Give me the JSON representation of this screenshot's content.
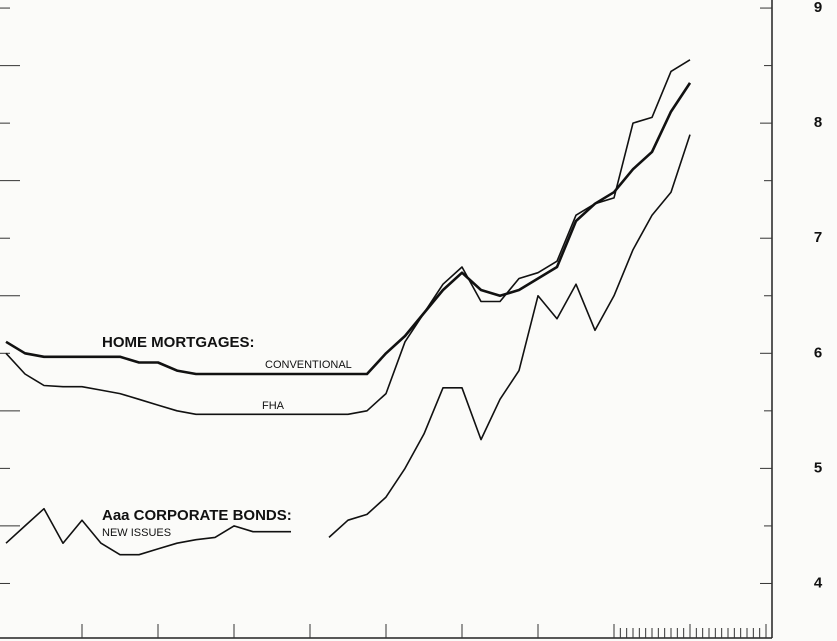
{
  "chart_data": {
    "type": "line",
    "ylim": [
      3.5,
      9.07
    ],
    "yticks": [
      4,
      5,
      6,
      7,
      8,
      9
    ],
    "minor_yticks": [
      4.5,
      5.5,
      6.5,
      7.5,
      8.5
    ],
    "xlim": [
      0,
      120
    ],
    "xticks": [
      12,
      24,
      36,
      48,
      60,
      72,
      84,
      96,
      97,
      98,
      99,
      100,
      101,
      102,
      103,
      104,
      105,
      106,
      107,
      108,
      109,
      110,
      111,
      112,
      113,
      114,
      115,
      116,
      117,
      118,
      119,
      120
    ],
    "x": [
      0,
      3,
      6,
      9,
      12,
      15,
      18,
      21,
      24,
      27,
      30,
      33,
      36,
      39,
      42,
      45,
      48,
      51,
      54,
      57,
      60,
      63,
      66,
      69,
      72,
      75,
      78,
      81,
      84,
      87,
      90,
      93,
      96,
      99,
      102,
      105,
      108
    ],
    "annotations": [
      "HOME MORTGAGES:",
      "CONVENTIONAL",
      "FHA",
      "Aaa CORPORATE BONDS:",
      "NEW ISSUES"
    ],
    "series": [
      {
        "color": "#111111",
        "values": [
          6.1,
          6.0,
          5.97,
          5.97,
          5.97,
          5.97,
          5.97,
          5.92,
          5.92,
          5.85,
          5.82,
          5.82,
          5.82,
          5.82,
          5.82,
          5.82,
          5.82,
          5.82,
          5.82,
          5.82,
          6.0,
          6.15,
          6.35,
          6.55,
          6.7,
          6.55,
          6.5,
          6.55,
          6.65,
          6.75,
          7.15,
          7.3,
          7.4,
          7.6,
          7.75,
          8.1,
          8.35
        ]
      },
      {
        "color": "#111111",
        "values": [
          6.0,
          5.82,
          5.72,
          5.71,
          5.71,
          5.68,
          5.65,
          5.6,
          5.55,
          5.5,
          5.47,
          5.47,
          5.47,
          5.47,
          5.47,
          5.47,
          5.47,
          5.47,
          5.47,
          5.5,
          5.65,
          6.1,
          6.35,
          6.6,
          6.75,
          6.45,
          6.45,
          6.65,
          6.7,
          6.8,
          7.2,
          7.3,
          7.35,
          8.0,
          8.05,
          8.45,
          8.55
        ]
      },
      {
        "color": "#111111",
        "values": [
          4.35,
          4.5,
          4.65,
          4.35,
          4.55,
          4.35,
          4.25,
          4.25,
          4.3,
          4.35,
          4.38,
          4.4,
          4.5,
          4.45,
          4.45,
          4.45,
          null,
          4.4,
          4.55,
          4.6,
          4.75,
          5.0,
          5.3,
          5.7,
          5.7,
          5.25,
          5.6,
          5.85,
          6.5,
          6.3,
          6.6,
          6.2,
          6.5,
          6.9,
          7.2,
          7.4,
          7.9
        ]
      }
    ]
  }
}
